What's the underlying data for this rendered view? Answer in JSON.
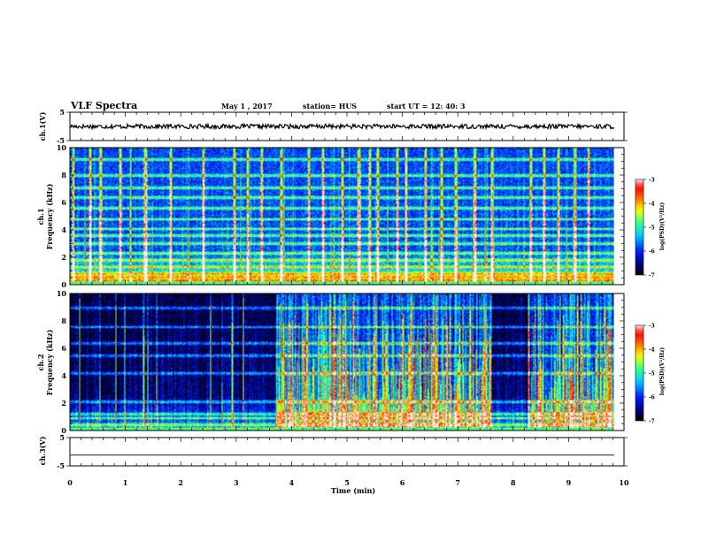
{
  "header": {
    "title": "VLF Spectra",
    "date": "May 1 , 2017",
    "station": "station= HUS",
    "start": "start UT =  12: 40: 3"
  },
  "chart_data": [
    {
      "type": "line",
      "panel": "ch1-waveform",
      "ylabel": "ch.1(V)",
      "ylim": [
        -5,
        5
      ],
      "yticks": [
        "5",
        "-5"
      ],
      "x_range_min": [
        0,
        9.83
      ],
      "level": 0.0,
      "noise_amplitude": 0.4,
      "color": "#000000"
    },
    {
      "type": "heatmap",
      "panel": "ch1-spectrogram",
      "ylabel_top": "ch.1",
      "ylabel": "Frequency (kHz)",
      "ylim": [
        0,
        10
      ],
      "yticks": [
        "0",
        "2",
        "4",
        "6",
        "8",
        "10"
      ],
      "x_range_min": [
        0,
        9.83
      ],
      "colorbar": {
        "label": "log(PSD)(V²/Hz)",
        "ticks": [
          "-3",
          "-4",
          "-5",
          "-6",
          "-7"
        ],
        "range": [
          -7,
          -3
        ]
      },
      "baseline": -6.0,
      "sferic_times_min": [
        0.05,
        0.35,
        0.55,
        0.9,
        1.35,
        1.8,
        2.4,
        2.95,
        3.2,
        3.45,
        3.8,
        4.3,
        4.55,
        4.9,
        5.2,
        5.4,
        5.55,
        5.9,
        6.05,
        6.4,
        6.7,
        6.95,
        7.3,
        7.6,
        8.3,
        8.55,
        8.8,
        9.1,
        9.35
      ],
      "bands_khz": [
        0.3,
        0.55,
        0.8,
        1.3,
        1.8,
        2.3,
        3.0,
        3.6,
        4.1,
        4.8,
        5.6,
        6.4,
        7.1,
        8.0,
        9.2
      ]
    },
    {
      "type": "heatmap",
      "panel": "ch2-spectrogram",
      "ylabel_top": "ch.2",
      "ylabel": "Frequency (kHz)",
      "ylim": [
        0,
        10
      ],
      "yticks": [
        "0",
        "2",
        "4",
        "6",
        "8",
        "10"
      ],
      "x_range_min": [
        0,
        9.83
      ],
      "colorbar": {
        "label": "log(PSD)(V²/Hz)",
        "ticks": [
          "-3",
          "-4",
          "-5",
          "-6",
          "-7"
        ],
        "range": [
          -7,
          -3
        ]
      },
      "baseline": -6.9,
      "noisy_intervals_min": [
        [
          3.7,
          7.6
        ],
        [
          8.25,
          9.83
        ]
      ],
      "bands_khz": [
        0.4,
        0.9,
        1.2,
        2.1,
        4.2,
        5.5,
        6.4,
        7.6,
        9.0
      ]
    },
    {
      "type": "line",
      "panel": "ch3-waveform",
      "ylabel": "ch.3(V)",
      "ylim": [
        -5,
        5
      ],
      "yticks": [
        "5",
        "-5"
      ],
      "x_range_min": [
        0,
        9.83
      ],
      "level": -1.2,
      "noise_amplitude": 0.0,
      "color": "#000000"
    }
  ],
  "xaxis": {
    "label": "Time (min)",
    "range": [
      0,
      10
    ],
    "ticks": [
      "0",
      "1",
      "2",
      "3",
      "4",
      "5",
      "6",
      "7",
      "8",
      "9",
      "10"
    ]
  }
}
